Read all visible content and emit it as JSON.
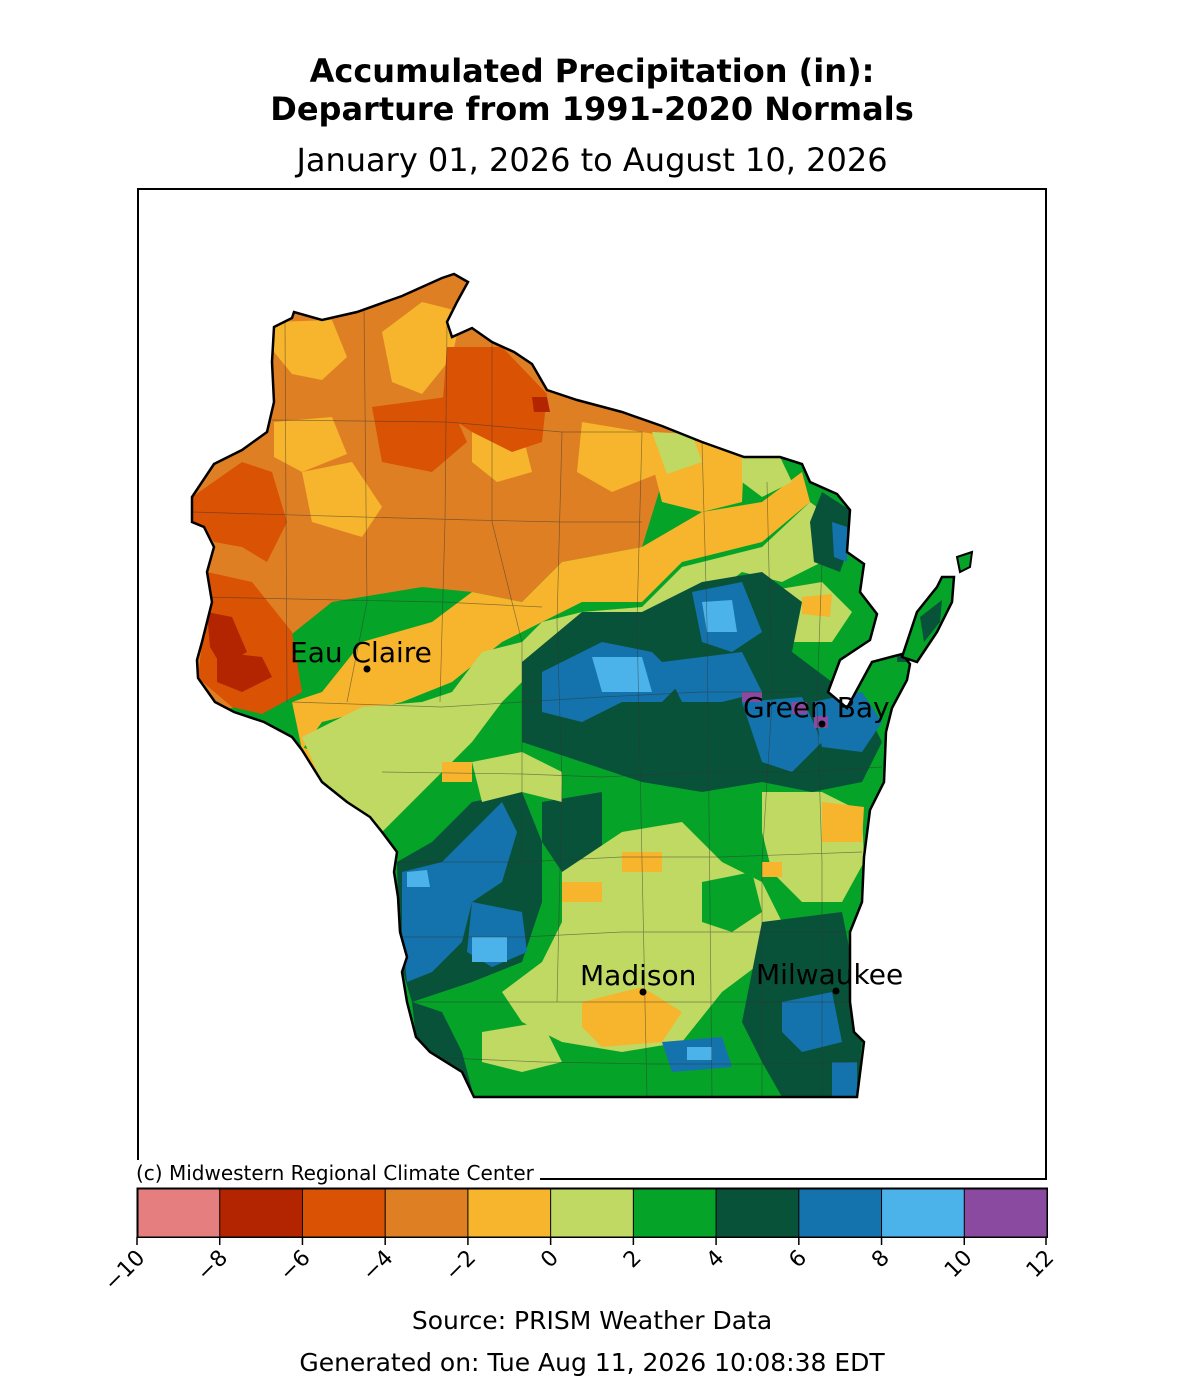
{
  "title": {
    "line1": "Accumulated Precipitation (in):",
    "line2": "Departure from 1991-2020 Normals",
    "period": "January 01, 2026 to August 10, 2026"
  },
  "credit": "(c) Midwestern Regional Climate Center",
  "source": "Source: PRISM Weather Data",
  "generated": "Generated on: Tue Aug 11, 2026 10:08:38 EDT",
  "cities": [
    {
      "name": "Eau Claire"
    },
    {
      "name": "Green Bay"
    },
    {
      "name": "Madison"
    },
    {
      "name": "Milwaukee"
    }
  ],
  "legend": {
    "unit": "in",
    "ticks": [
      "−10",
      "−8",
      "−6",
      "−4",
      "−2",
      "0",
      "2",
      "4",
      "6",
      "8",
      "10",
      "12"
    ],
    "bins": [
      {
        "from": -10,
        "to": -8,
        "color": "#e57e7e"
      },
      {
        "from": -8,
        "to": -6,
        "color": "#b32400"
      },
      {
        "from": -6,
        "to": -4,
        "color": "#da5204"
      },
      {
        "from": -4,
        "to": -2,
        "color": "#df7f24"
      },
      {
        "from": -2,
        "to": 0,
        "color": "#f6b52c"
      },
      {
        "from": 0,
        "to": 2,
        "color": "#bfd962"
      },
      {
        "from": 2,
        "to": 4,
        "color": "#05a328"
      },
      {
        "from": 4,
        "to": 6,
        "color": "#09523a"
      },
      {
        "from": 6,
        "to": 8,
        "color": "#1473ac"
      },
      {
        "from": 8,
        "to": 10,
        "color": "#4cb3ea"
      },
      {
        "from": 10,
        "to": 12,
        "color": "#8a4a9f"
      }
    ]
  }
}
